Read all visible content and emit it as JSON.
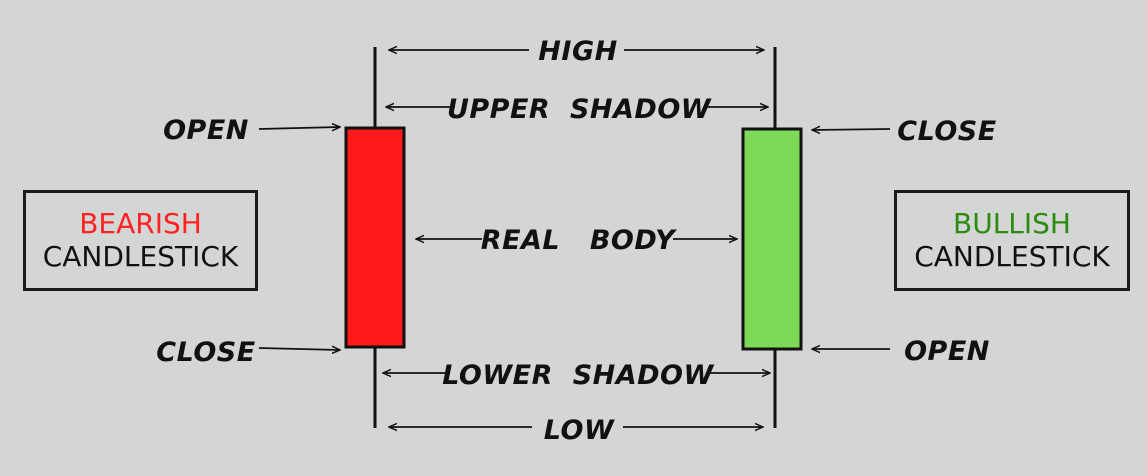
{
  "labels": {
    "high": "HIGH",
    "upper_shadow": "UPPER  SHADOW",
    "real_body": "REAL   BODY",
    "lower_shadow": "LOWER  SHADOW",
    "low": "LOW",
    "bear_open": "OPEN",
    "bear_close": "CLOSE",
    "bull_close": "CLOSE",
    "bull_open": "OPEN"
  },
  "bearish_box": {
    "title": "BEARISH",
    "subtitle": "CANDLESTICK"
  },
  "bullish_box": {
    "title": "BULLISH",
    "subtitle": "CANDLESTICK"
  },
  "colors": {
    "background": "#d3d6d5",
    "bearish": "#ff1a1a",
    "bullish": "#7ed957",
    "bearish_title": "#ff2222",
    "bullish_title": "#2e8b12",
    "ink": "#111111"
  }
}
